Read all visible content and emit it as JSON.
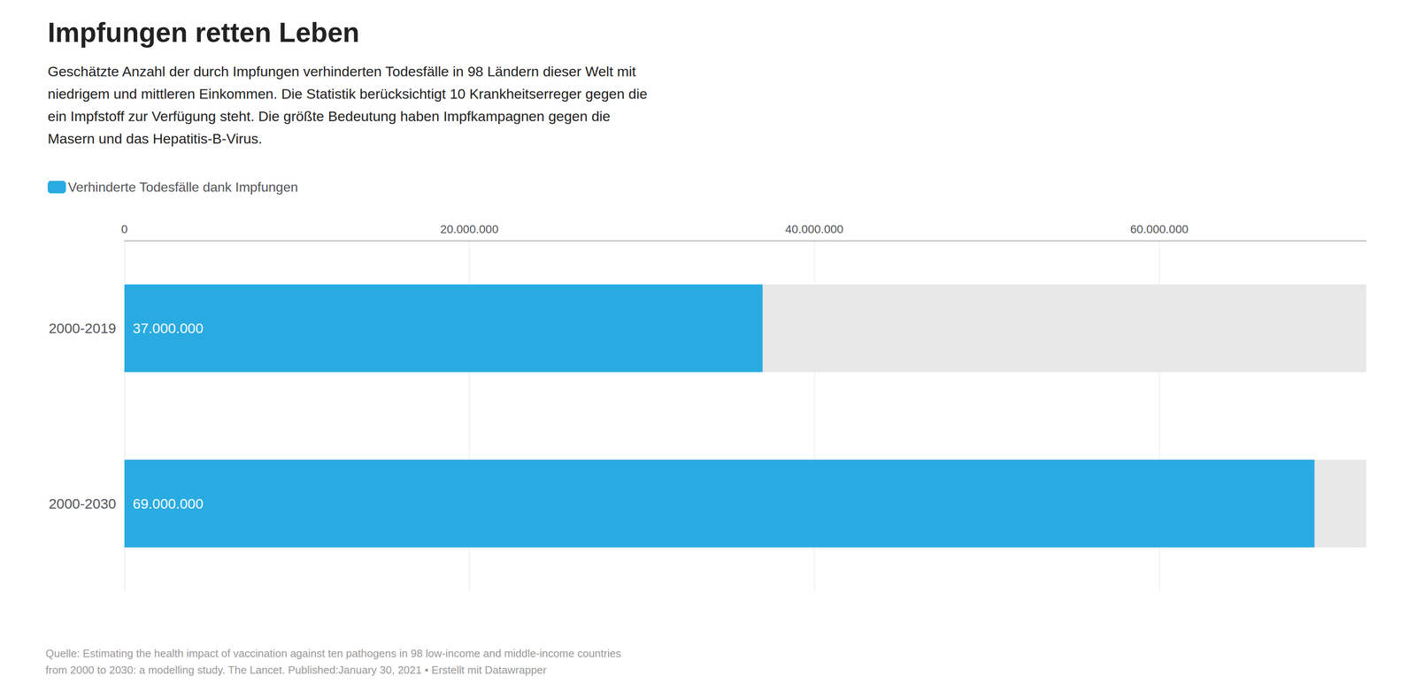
{
  "chart_data": {
    "type": "bar",
    "orientation": "horizontal",
    "title": "Impfungen retten Leben",
    "subtitle": "Geschätzte Anzahl der durch Impfungen verhinderten Todesfälle in 98 Ländern dieser Welt mit\nniedrigem und mittleren Einkommen. Die Statistik berücksichtigt 10 Krankheitserreger gegen die\nein Impfstoff zur Verfügung steht. Die größte Bedeutung haben Impfkampagnen gegen die\nMasern und das Hepatitis-B-Virus.",
    "annotations": [
      "Quelle: Estimating the health impact of vaccination against ten pathogens in 98 low-income and middle-income countries\nfrom 2000 to 2030: a modelling study. The Lancet. Published:January 30, 2021 • Erstellt mit Datawrapper"
    ],
    "categories": [
      "2000-2019",
      "2000-2030"
    ],
    "series": [
      {
        "name": "Verhinderte Todesfälle dank Impfungen",
        "color": "#29abe2",
        "values": [
          37000000,
          69000000
        ],
        "value_labels": [
          "37.000.000",
          "69.000.000"
        ]
      }
    ],
    "xlim": [
      0,
      72000000
    ],
    "xticks": [
      0,
      {
        "value": 20000000,
        "label": "20.000.000"
      },
      {
        "value": 40000000,
        "label": "40.000.000"
      },
      {
        "value": 60000000,
        "label": "60.000.000"
      }
    ],
    "grid": true,
    "legend": "upper left",
    "data_labels": true
  }
}
